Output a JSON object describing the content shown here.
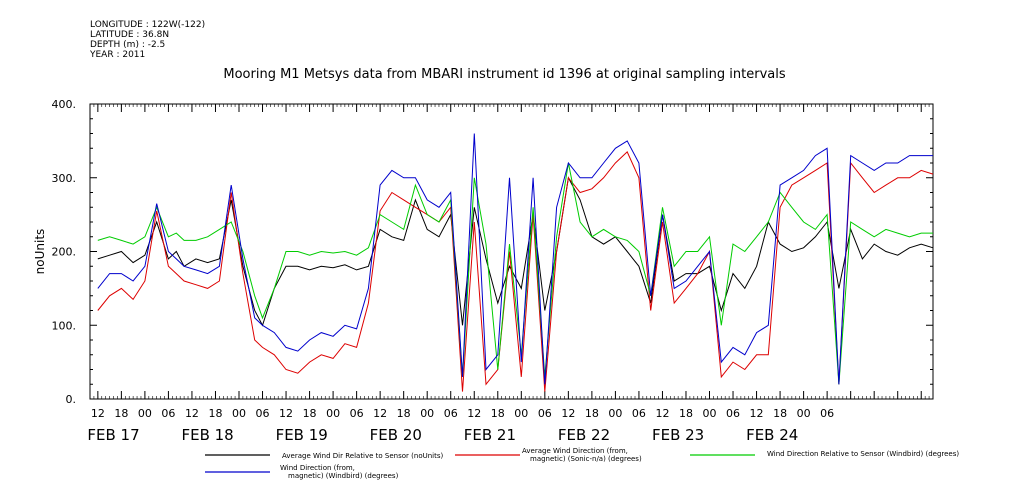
{
  "header": {
    "meta": [
      "LONGITUDE : 122W(-122)",
      "LATITUDE : 36.8N",
      "DEPTH (m) : -2.5",
      "YEAR : 2011"
    ]
  },
  "chart_data": {
    "type": "line",
    "title": "Mooring M1 Metsys data from MBARI instrument id 1396 at original sampling intervals",
    "ylabel": "noUnits",
    "xlabel": "",
    "ylim": [
      0,
      400
    ],
    "y_ticks": [
      "0.",
      "100.",
      "200.",
      "300.",
      "400."
    ],
    "x_range_hours": [
      -8,
      207
    ],
    "hour_tick_labels": [
      "12",
      "18",
      "00",
      "06",
      "12",
      "18",
      "00",
      "06",
      "12",
      "18",
      "00",
      "06",
      "12",
      "18",
      "00",
      "06",
      "12",
      "18",
      "00",
      "06",
      "12",
      "18",
      "00",
      "06",
      "12",
      "18",
      "00",
      "06",
      "12",
      "18",
      "00",
      "06"
    ],
    "day_labels": [
      "FEB 17",
      "FEB 18",
      "FEB 19",
      "FEB 20",
      "FEB 21",
      "FEB 22",
      "FEB 23",
      "FEB 24"
    ],
    "grid": false,
    "legend_position": "bottom",
    "colors": {
      "black": "#000000",
      "red": "#dd0000",
      "green": "#00cc00",
      "blue": "#0000cc"
    },
    "series": [
      {
        "name": "Average Wind Dir Relative to Sensor (noUnits)",
        "color": "#000000",
        "x": [
          -6,
          -3,
          0,
          3,
          6,
          9,
          12,
          14,
          16,
          19,
          22,
          25,
          28,
          31,
          34,
          36,
          39,
          42,
          45,
          48,
          51,
          54,
          57,
          60,
          63,
          66,
          69,
          72,
          75,
          78,
          81,
          84,
          87,
          90,
          93,
          96,
          99,
          102,
          105,
          108,
          111,
          114,
          117,
          120,
          123,
          126,
          129,
          132,
          135,
          138,
          141,
          144,
          147,
          150,
          153,
          156,
          159,
          162,
          165,
          168,
          171,
          174,
          177,
          180,
          183,
          186,
          189,
          192,
          195,
          198,
          201,
          204,
          207
        ],
        "y": [
          190,
          195,
          200,
          185,
          195,
          240,
          190,
          200,
          180,
          190,
          185,
          190,
          270,
          180,
          120,
          100,
          150,
          180,
          180,
          175,
          180,
          178,
          182,
          175,
          180,
          230,
          220,
          215,
          270,
          230,
          220,
          250,
          100,
          260,
          190,
          130,
          180,
          150,
          250,
          120,
          200,
          300,
          270,
          220,
          210,
          220,
          200,
          180,
          130,
          250,
          160,
          170,
          170,
          180,
          120,
          170,
          150,
          180,
          240,
          210,
          200,
          205,
          220,
          240,
          150,
          230,
          190,
          210,
          200,
          195,
          205,
          210,
          205
        ]
      },
      {
        "name": "Average Wind Direction (from, magnetic) (Sonic-n/a) (degrees)",
        "color": "#dd0000",
        "x": [
          -6,
          -3,
          0,
          3,
          6,
          9,
          12,
          14,
          16,
          19,
          22,
          25,
          28,
          31,
          34,
          36,
          39,
          42,
          45,
          48,
          51,
          54,
          57,
          60,
          63,
          66,
          69,
          72,
          75,
          78,
          81,
          84,
          87,
          90,
          93,
          96,
          99,
          102,
          105,
          108,
          111,
          114,
          117,
          120,
          123,
          126,
          129,
          132,
          135,
          138,
          141,
          144,
          147,
          150,
          153,
          156,
          159,
          162,
          165,
          168,
          171,
          174,
          177,
          180,
          183,
          186,
          189,
          192,
          195,
          198,
          201,
          204,
          207
        ],
        "y": [
          120,
          140,
          150,
          135,
          160,
          255,
          180,
          170,
          160,
          155,
          150,
          160,
          280,
          170,
          80,
          70,
          60,
          40,
          35,
          50,
          60,
          55,
          75,
          70,
          130,
          255,
          280,
          270,
          260,
          250,
          240,
          260,
          10,
          240,
          20,
          40,
          200,
          30,
          250,
          10,
          200,
          300,
          280,
          285,
          300,
          320,
          335,
          300,
          120,
          240,
          130,
          150,
          170,
          200,
          30,
          50,
          40,
          60,
          60,
          260,
          290,
          300,
          310,
          320,
          20,
          320,
          300,
          280,
          290,
          300,
          300,
          310,
          305
        ]
      },
      {
        "name": "Wind Direction Relative to Sensor (Windbird) (degrees)",
        "color": "#00cc00",
        "x": [
          -6,
          -3,
          0,
          3,
          6,
          9,
          12,
          14,
          16,
          19,
          22,
          25,
          28,
          31,
          34,
          36,
          39,
          42,
          45,
          48,
          51,
          54,
          57,
          60,
          63,
          66,
          69,
          72,
          75,
          78,
          81,
          84,
          87,
          90,
          93,
          96,
          99,
          102,
          105,
          108,
          111,
          114,
          117,
          120,
          123,
          126,
          129,
          132,
          135,
          138,
          141,
          144,
          147,
          150,
          153,
          156,
          159,
          162,
          165,
          168,
          171,
          174,
          177,
          180,
          183,
          186,
          189,
          192,
          195,
          198,
          201,
          204,
          207
        ],
        "y": [
          215,
          220,
          215,
          210,
          220,
          260,
          220,
          225,
          215,
          215,
          220,
          230,
          240,
          200,
          140,
          110,
          150,
          200,
          200,
          195,
          200,
          198,
          200,
          195,
          205,
          250,
          240,
          230,
          290,
          250,
          240,
          270,
          30,
          300,
          210,
          40,
          210,
          60,
          260,
          30,
          220,
          320,
          240,
          220,
          230,
          220,
          215,
          200,
          140,
          260,
          180,
          200,
          200,
          220,
          100,
          210,
          200,
          220,
          240,
          280,
          260,
          240,
          230,
          250,
          20,
          240,
          230,
          220,
          230,
          225,
          220,
          225,
          225
        ]
      },
      {
        "name": "Wind Direction (from, magnetic) (Windbird) (degrees)",
        "color": "#0000cc",
        "x": [
          -6,
          -3,
          0,
          3,
          6,
          9,
          12,
          14,
          16,
          19,
          22,
          25,
          28,
          31,
          34,
          36,
          39,
          42,
          45,
          48,
          51,
          54,
          57,
          60,
          63,
          66,
          69,
          72,
          75,
          78,
          81,
          84,
          87,
          90,
          93,
          96,
          99,
          102,
          105,
          108,
          111,
          114,
          117,
          120,
          123,
          126,
          129,
          132,
          135,
          138,
          141,
          144,
          147,
          150,
          153,
          156,
          159,
          162,
          165,
          168,
          171,
          174,
          177,
          180,
          183,
          186,
          189,
          192,
          195,
          198,
          201,
          204,
          207
        ],
        "y": [
          150,
          170,
          170,
          160,
          180,
          265,
          200,
          190,
          180,
          175,
          170,
          180,
          290,
          190,
          110,
          100,
          90,
          70,
          65,
          80,
          90,
          85,
          100,
          95,
          150,
          290,
          310,
          300,
          300,
          270,
          260,
          280,
          30,
          360,
          40,
          60,
          300,
          50,
          300,
          20,
          260,
          320,
          300,
          300,
          320,
          340,
          350,
          320,
          140,
          250,
          150,
          160,
          180,
          200,
          50,
          70,
          60,
          90,
          100,
          290,
          300,
          310,
          330,
          340,
          20,
          330,
          320,
          310,
          320,
          320,
          330,
          330,
          330
        ]
      }
    ]
  }
}
